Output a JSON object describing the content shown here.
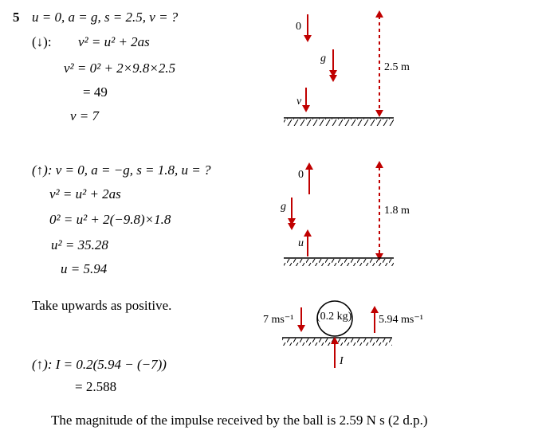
{
  "question_number": "5",
  "part1": {
    "given": "u = 0, a = g, s = 2.5, v = ?",
    "direction": "(↓):",
    "formula": "v² = u² + 2as",
    "substitution": "v² = 0² + 2×9.8×2.5",
    "result_sq": "= 49",
    "result": "v = 7",
    "diagram": {
      "top_label": "0",
      "accel_label": "g",
      "bottom_label": "v",
      "distance_label": "2.5 m"
    }
  },
  "part2": {
    "given": "(↑): v = 0, a = −g, s = 1.8, u = ?",
    "formula": "v² = u² + 2as",
    "substitution": "0² = u² + 2(−9.8)×1.8",
    "result_sq": "u² = 35.28",
    "result": "u = 5.94",
    "diagram": {
      "top_label": "0",
      "accel_label": "g",
      "bottom_label": "u",
      "distance_label": "1.8 m"
    }
  },
  "convention": "Take upwards as positive.",
  "impulse_diagram": {
    "left_label": "7 ms⁻¹",
    "mass_label": "(0.2 kg)",
    "right_label": "5.94 ms⁻¹",
    "impulse_label": "I"
  },
  "impulse": {
    "equation": "(↑): I = 0.2(5.94 − (−7))",
    "result": "= 2.588"
  },
  "conclusion": "The magnitude of the impulse received by the ball is 2.59 N s (2 d.p.)"
}
